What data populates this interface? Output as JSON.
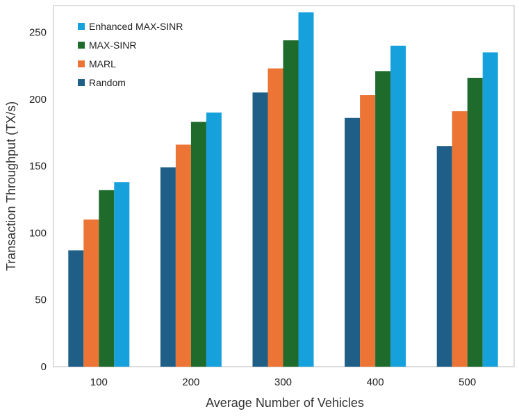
{
  "chart_data": {
    "type": "bar",
    "title": "",
    "xlabel": "Average Number of Vehicles",
    "ylabel": "Transaction Throughput (TX/s)",
    "categories": [
      "100",
      "200",
      "300",
      "400",
      "500"
    ],
    "ylim": [
      0,
      270
    ],
    "yticks": [
      0,
      50,
      100,
      150,
      200,
      250
    ],
    "grid": false,
    "legend_position": "top-left",
    "series": [
      {
        "name": "Random",
        "color": "#1f5f87",
        "values": [
          87,
          149,
          205,
          186,
          165
        ]
      },
      {
        "name": "MARL",
        "color": "#ec7434",
        "values": [
          110,
          166,
          223,
          203,
          191
        ]
      },
      {
        "name": "MAX-SINR",
        "color": "#1f6b2c",
        "values": [
          132,
          183,
          244,
          221,
          216
        ]
      },
      {
        "name": "Enhanced MAX-SINR",
        "color": "#17a1dc",
        "values": [
          138,
          190,
          265,
          240,
          235
        ]
      }
    ],
    "legend_order": [
      "Enhanced MAX-SINR",
      "MAX-SINR",
      "MARL",
      "Random"
    ]
  }
}
